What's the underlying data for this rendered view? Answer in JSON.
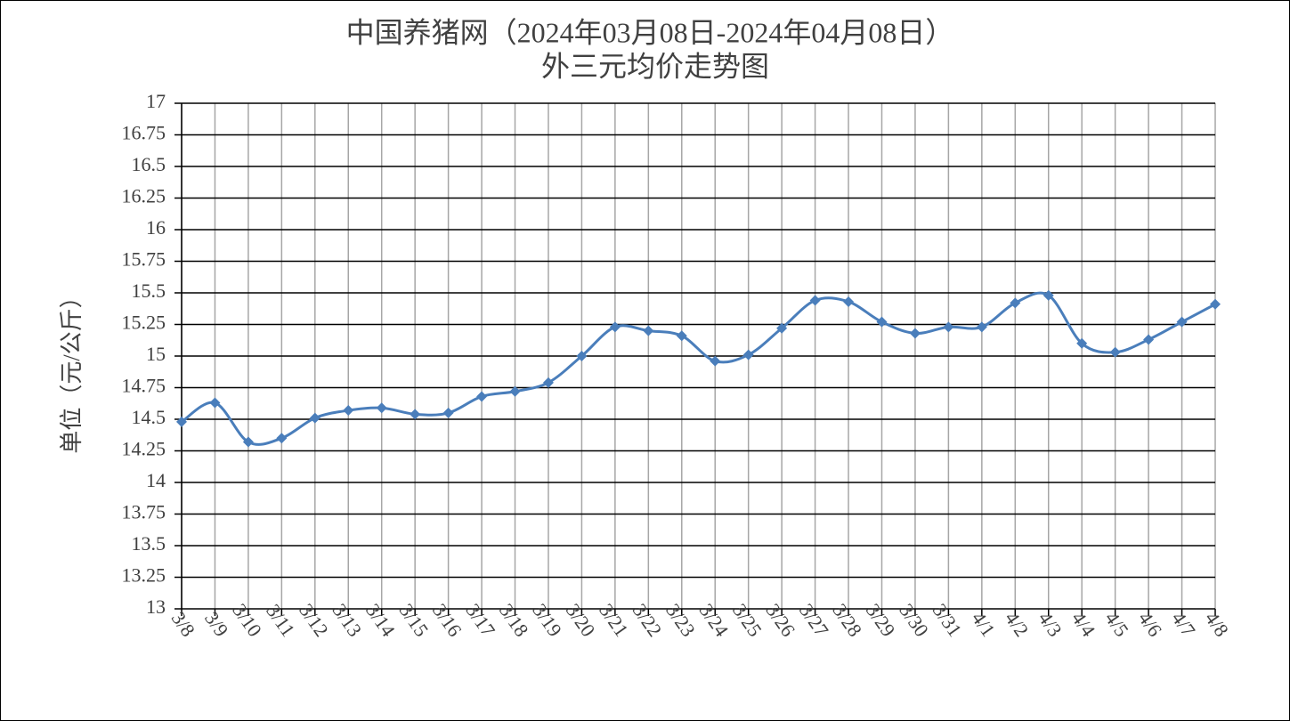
{
  "chart_data": {
    "type": "line",
    "title": "中国养猪网（2024年03月08日-2024年04月08日）",
    "subtitle": "外三元均价走势图",
    "y_label": "单位（元/公斤）",
    "categories": [
      "3/8",
      "3/9",
      "3/10",
      "3/11",
      "3/12",
      "3/13",
      "3/14",
      "3/15",
      "3/16",
      "3/17",
      "3/18",
      "3/19",
      "3/20",
      "3/21",
      "3/22",
      "3/23",
      "3/24",
      "3/25",
      "3/26",
      "3/27",
      "3/28",
      "3/29",
      "3/30",
      "3/31",
      "4/1",
      "4/2",
      "4/3",
      "4/4",
      "4/5",
      "4/6",
      "4/7",
      "4/8"
    ],
    "series": [
      {
        "color": "#4a7ebb",
        "values": [
          14.48,
          14.63,
          14.32,
          14.35,
          14.51,
          14.57,
          14.59,
          14.54,
          14.55,
          14.68,
          14.72,
          14.79,
          15.0,
          15.23,
          15.2,
          15.16,
          14.96,
          15.01,
          15.22,
          15.44,
          15.43,
          15.27,
          15.18,
          15.23,
          15.23,
          15.42,
          15.48,
          15.1,
          15.03,
          15.13,
          15.27,
          15.41
        ]
      }
    ],
    "ylim": [
      13,
      17
    ],
    "yticks": [
      13,
      13.25,
      13.5,
      13.75,
      14,
      14.25,
      14.5,
      14.75,
      15,
      15.25,
      15.5,
      15.75,
      16,
      16.25,
      16.5,
      16.75,
      17
    ],
    "grid": true
  }
}
